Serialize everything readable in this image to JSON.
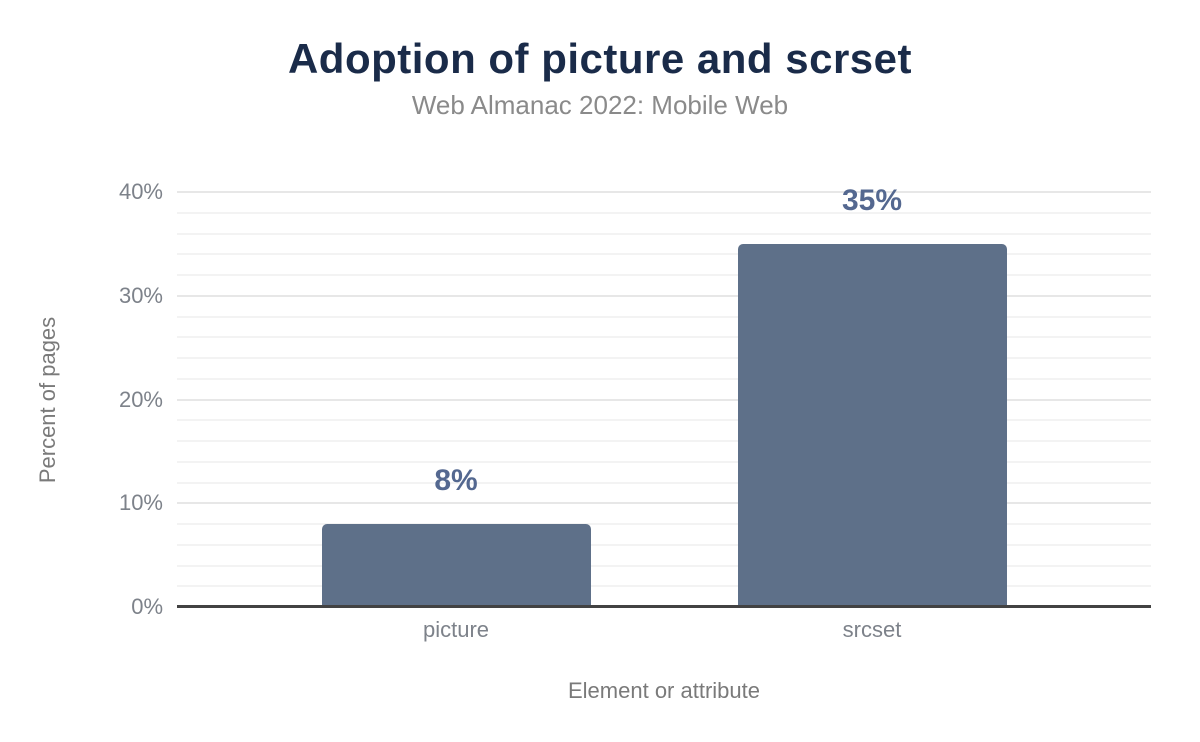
{
  "page": {
    "background": "#ffffff"
  },
  "chart_data": {
    "type": "bar",
    "title": "Adoption of picture and scrset",
    "subtitle": "Web Almanac 2022: Mobile Web",
    "xlabel": "Element or attribute",
    "ylabel": "Percent of pages",
    "categories": [
      "picture",
      "srcset"
    ],
    "values": [
      8,
      35
    ],
    "value_labels": [
      "8%",
      "35%"
    ],
    "ylim": [
      0,
      40
    ],
    "ytick_major_step": 10,
    "ytick_minor_step": 2,
    "ytick_labels": [
      "0%",
      "10%",
      "20%",
      "30%",
      "40%"
    ],
    "grid": "on",
    "legend": "none",
    "colors": {
      "title": "#1a2b49",
      "subtitle": "#8a8a8a",
      "bar": "#5e7089",
      "value_label": "#546890",
      "tick_label": "#7d828a",
      "axis_title": "#7a7a7a",
      "grid_major": "#e7e7e7",
      "grid_minor": "#f3f3f3",
      "axis_line": "#424242"
    }
  }
}
